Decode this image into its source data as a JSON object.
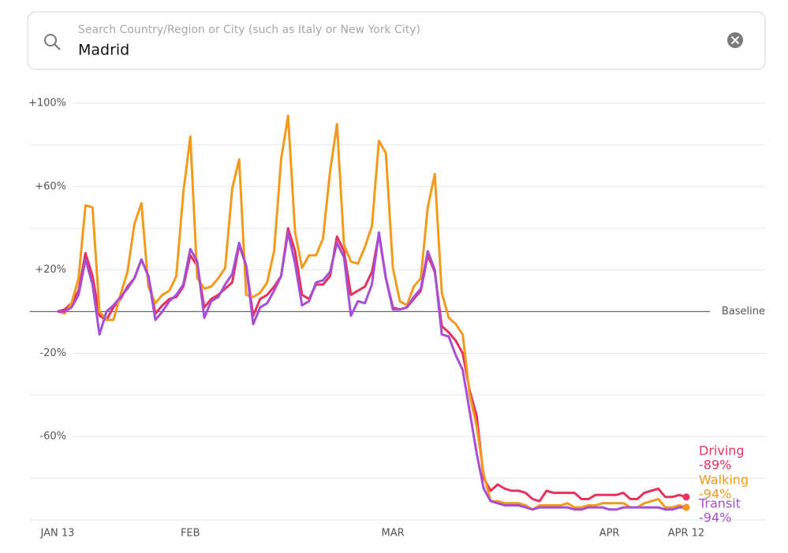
{
  "search": {
    "placeholder": "Search Country/Region or City (such as Italy or New York City)",
    "value": "Madrid"
  },
  "chart_data": {
    "type": "line",
    "x": [
      0,
      1,
      2,
      3,
      4,
      5,
      6,
      7,
      8,
      9,
      10,
      11,
      12,
      13,
      14,
      15,
      16,
      17,
      18,
      19,
      20,
      21,
      22,
      23,
      24,
      25,
      26,
      27,
      28,
      29,
      30,
      31,
      32,
      33,
      34,
      35,
      36,
      37,
      38,
      39,
      40,
      41,
      42,
      43,
      44,
      45,
      46,
      47,
      48,
      49,
      50,
      51,
      52,
      53,
      54,
      55,
      56,
      57,
      58,
      59,
      60,
      61,
      62,
      63,
      64,
      65,
      66,
      67,
      68,
      69,
      70,
      71,
      72,
      73,
      74,
      75,
      76,
      77,
      78,
      79,
      80,
      81,
      82,
      83,
      84,
      85,
      86,
      87,
      88,
      89,
      90
    ],
    "xlim": [
      0,
      90
    ],
    "xticks": [
      {
        "value": 0,
        "label": "JAN 13"
      },
      {
        "value": 19,
        "label": "FEB"
      },
      {
        "value": 48,
        "label": "MAR"
      },
      {
        "value": 79,
        "label": "APR"
      },
      {
        "value": 90,
        "label": "APR 12"
      }
    ],
    "ylim": [
      -100,
      100
    ],
    "yticks": [
      {
        "value": 100,
        "label": "+100%"
      },
      {
        "value": 60,
        "label": "+60%"
      },
      {
        "value": 20,
        "label": "+20%"
      },
      {
        "value": -20,
        "label": "-20%"
      },
      {
        "value": -60,
        "label": "-60%"
      }
    ],
    "minor_yticks": [
      80,
      40,
      -40,
      -80,
      -100
    ],
    "baseline": {
      "value": 0,
      "label": "Baseline"
    },
    "grid": true,
    "series": [
      {
        "name": "Driving",
        "color": "#e8325e",
        "end_label": "-89%",
        "values": [
          0,
          1,
          4,
          10,
          28,
          17,
          -2,
          -4,
          2,
          6,
          12,
          16,
          25,
          17,
          -1,
          3,
          6,
          7,
          12,
          27,
          22,
          2,
          6,
          8,
          11,
          14,
          32,
          22,
          -2,
          6,
          8,
          12,
          17,
          40,
          29,
          8,
          6,
          13,
          13,
          17,
          36,
          29,
          8,
          10,
          12,
          19,
          37,
          16,
          2,
          1,
          2,
          6,
          10,
          27,
          19,
          -7,
          -10,
          -14,
          -20,
          -38,
          -50,
          -80,
          -86,
          -83,
          -85,
          -86,
          -86,
          -87,
          -90,
          -91,
          -86,
          -87,
          -87,
          -87,
          -87,
          -90,
          -90,
          -88,
          -88,
          -88,
          -88,
          -87,
          -90,
          -90,
          -87,
          -86,
          -85,
          -89,
          -89,
          -88,
          -89
        ]
      },
      {
        "name": "Walking",
        "color": "#f39a1d",
        "end_label": "-94%",
        "values": [
          0,
          -1,
          4,
          16,
          51,
          50,
          0,
          -4,
          -4,
          8,
          19,
          42,
          52,
          12,
          4,
          8,
          10,
          17,
          57,
          84,
          16,
          11,
          12,
          16,
          21,
          59,
          73,
          8,
          7,
          9,
          14,
          29,
          73,
          94,
          38,
          21,
          27,
          27,
          35,
          67,
          90,
          32,
          24,
          23,
          31,
          41,
          82,
          76,
          21,
          5,
          3,
          12,
          16,
          50,
          66,
          9,
          -3,
          -6,
          -11,
          -40,
          -55,
          -78,
          -91,
          -91,
          -92,
          -92,
          -92,
          -93,
          -95,
          -93,
          -93,
          -93,
          -93,
          -92,
          -94,
          -94,
          -93,
          -93,
          -92,
          -92,
          -92,
          -92,
          -94,
          -94,
          -92,
          -91,
          -90,
          -94,
          -94,
          -93,
          -94
        ]
      },
      {
        "name": "Transit",
        "color": "#a64fd6",
        "end_label": "-94%",
        "values": [
          0,
          0,
          2,
          8,
          25,
          13,
          -11,
          0,
          3,
          7,
          11,
          16,
          25,
          17,
          -4,
          0,
          5,
          8,
          13,
          30,
          24,
          -3,
          5,
          7,
          13,
          18,
          33,
          22,
          -6,
          2,
          4,
          10,
          17,
          38,
          23,
          3,
          5,
          14,
          15,
          19,
          33,
          26,
          -2,
          5,
          4,
          13,
          38,
          16,
          1,
          1,
          2,
          7,
          11,
          29,
          20,
          -11,
          -12,
          -21,
          -28,
          -48,
          -68,
          -85,
          -91,
          -92,
          -93,
          -93,
          -93,
          -94,
          -95,
          -94,
          -94,
          -94,
          -94,
          -94,
          -95,
          -95,
          -94,
          -94,
          -94,
          -95,
          -95,
          -94,
          -94,
          -94,
          -94,
          -94,
          -94,
          -95,
          -95,
          -94,
          -94
        ]
      }
    ]
  }
}
